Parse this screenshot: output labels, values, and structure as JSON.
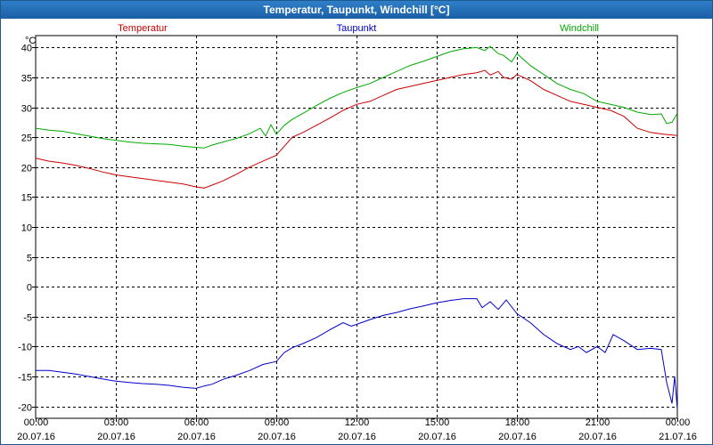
{
  "window": {
    "title": "Temperatur, Taupunkt, Windchill [°C]"
  },
  "chart_data": {
    "type": "line",
    "title": "Temperatur, Taupunkt, Windchill [°C]",
    "ylabel": "°C",
    "ylim": [
      -22,
      42
    ],
    "yticks": [
      40,
      35,
      30,
      25,
      20,
      15,
      10,
      5,
      0,
      -5,
      -10,
      -15,
      -20
    ],
    "xlim": [
      0,
      24
    ],
    "xticks": [
      {
        "x": 0,
        "time": "00:00",
        "date": "20.07.16"
      },
      {
        "x": 3,
        "time": "03:00",
        "date": "20.07.16"
      },
      {
        "x": 6,
        "time": "06:00",
        "date": "20.07.16"
      },
      {
        "x": 9,
        "time": "09:00",
        "date": "20.07.16"
      },
      {
        "x": 12,
        "time": "12:00",
        "date": "20.07.16"
      },
      {
        "x": 15,
        "time": "15:00",
        "date": "20.07.16"
      },
      {
        "x": 18,
        "time": "18:00",
        "date": "20.07.16"
      },
      {
        "x": 21,
        "time": "21:00",
        "date": "20.07.16"
      },
      {
        "x": 24,
        "time": "00:00",
        "date": "21.07.16"
      }
    ],
    "grid": true,
    "series": [
      {
        "name": "Temperatur",
        "color": "#cc0000",
        "points": [
          [
            0,
            21.5
          ],
          [
            0.5,
            21
          ],
          [
            1,
            20.7
          ],
          [
            1.5,
            20.3
          ],
          [
            2,
            19.8
          ],
          [
            2.5,
            19.2
          ],
          [
            3,
            18.7
          ],
          [
            3.5,
            18.4
          ],
          [
            4,
            18.1
          ],
          [
            4.5,
            17.8
          ],
          [
            5,
            17.5
          ],
          [
            5.5,
            17.2
          ],
          [
            6,
            16.7
          ],
          [
            6.3,
            16.5
          ],
          [
            6.6,
            17
          ],
          [
            7,
            17.7
          ],
          [
            7.5,
            18.8
          ],
          [
            8,
            20
          ],
          [
            8.5,
            21
          ],
          [
            9,
            22
          ],
          [
            9.3,
            23.5
          ],
          [
            9.6,
            25
          ],
          [
            10,
            25.8
          ],
          [
            10.5,
            27
          ],
          [
            11,
            28.2
          ],
          [
            11.5,
            29.5
          ],
          [
            12,
            30.5
          ],
          [
            12.5,
            31
          ],
          [
            13,
            32
          ],
          [
            13.5,
            33
          ],
          [
            14,
            33.5
          ],
          [
            14.5,
            34
          ],
          [
            15,
            34.5
          ],
          [
            15.5,
            35
          ],
          [
            16,
            35.5
          ],
          [
            16.5,
            35.8
          ],
          [
            16.8,
            36.2
          ],
          [
            17,
            35.4
          ],
          [
            17.3,
            36
          ],
          [
            17.5,
            35
          ],
          [
            17.8,
            34.7
          ],
          [
            18,
            35.5
          ],
          [
            18.5,
            34.5
          ],
          [
            19,
            33
          ],
          [
            19.5,
            32
          ],
          [
            20,
            31
          ],
          [
            20.5,
            30.5
          ],
          [
            21,
            30
          ],
          [
            21.5,
            29.5
          ],
          [
            22,
            28.5
          ],
          [
            22.5,
            26.5
          ],
          [
            23,
            25.8
          ],
          [
            23.5,
            25.5
          ],
          [
            24,
            25.3
          ]
        ]
      },
      {
        "name": "Taupunkt",
        "color": "#0000cc",
        "points": [
          [
            0,
            -14
          ],
          [
            0.5,
            -14
          ],
          [
            1,
            -14.3
          ],
          [
            1.5,
            -14.6
          ],
          [
            2,
            -15
          ],
          [
            2.5,
            -15.4
          ],
          [
            3,
            -15.8
          ],
          [
            3.5,
            -16
          ],
          [
            4,
            -16.2
          ],
          [
            4.5,
            -16.3
          ],
          [
            5,
            -16.5
          ],
          [
            5.5,
            -16.8
          ],
          [
            6,
            -17
          ],
          [
            6.3,
            -16.6
          ],
          [
            6.6,
            -16.3
          ],
          [
            7,
            -15.5
          ],
          [
            7.5,
            -14.8
          ],
          [
            8,
            -14
          ],
          [
            8.5,
            -13
          ],
          [
            9,
            -12.5
          ],
          [
            9.3,
            -11
          ],
          [
            9.6,
            -10.2
          ],
          [
            10,
            -9.5
          ],
          [
            10.5,
            -8.5
          ],
          [
            11,
            -7.2
          ],
          [
            11.5,
            -6
          ],
          [
            11.8,
            -6.6
          ],
          [
            12,
            -6.3
          ],
          [
            12.5,
            -5.5
          ],
          [
            13,
            -4.8
          ],
          [
            13.5,
            -4.3
          ],
          [
            14,
            -3.7
          ],
          [
            14.5,
            -3.2
          ],
          [
            15,
            -2.7
          ],
          [
            15.5,
            -2.3
          ],
          [
            16,
            -2
          ],
          [
            16.5,
            -2
          ],
          [
            16.7,
            -3.5
          ],
          [
            17,
            -2.5
          ],
          [
            17.3,
            -3.8
          ],
          [
            17.6,
            -2.2
          ],
          [
            18,
            -4.5
          ],
          [
            18.5,
            -6
          ],
          [
            19,
            -8
          ],
          [
            19.5,
            -9.5
          ],
          [
            20,
            -10.5
          ],
          [
            20.3,
            -10
          ],
          [
            20.6,
            -11
          ],
          [
            21,
            -10
          ],
          [
            21.3,
            -11
          ],
          [
            21.6,
            -8
          ],
          [
            22,
            -9
          ],
          [
            22.5,
            -10.5
          ],
          [
            23,
            -10.3
          ],
          [
            23.4,
            -10.5
          ],
          [
            23.6,
            -16
          ],
          [
            23.8,
            -19.5
          ],
          [
            23.9,
            -15
          ],
          [
            24,
            -20.5
          ]
        ]
      },
      {
        "name": "Windchill",
        "color": "#00aa00",
        "points": [
          [
            0,
            26.5
          ],
          [
            0.5,
            26.2
          ],
          [
            1,
            26
          ],
          [
            1.5,
            25.6
          ],
          [
            2,
            25.2
          ],
          [
            2.5,
            24.8
          ],
          [
            3,
            24.5
          ],
          [
            3.5,
            24.2
          ],
          [
            4,
            24
          ],
          [
            4.5,
            23.9
          ],
          [
            5,
            23.8
          ],
          [
            5.5,
            23.5
          ],
          [
            6,
            23.3
          ],
          [
            6.3,
            23.2
          ],
          [
            6.6,
            23.7
          ],
          [
            7,
            24.2
          ],
          [
            7.5,
            24.8
          ],
          [
            8,
            25.6
          ],
          [
            8.4,
            26.5
          ],
          [
            8.6,
            25.2
          ],
          [
            8.8,
            27.1
          ],
          [
            9,
            25.5
          ],
          [
            9.3,
            27
          ],
          [
            9.6,
            28
          ],
          [
            10,
            29
          ],
          [
            10.5,
            30.3
          ],
          [
            11,
            31.5
          ],
          [
            11.5,
            32.5
          ],
          [
            12,
            33.3
          ],
          [
            12.5,
            34
          ],
          [
            13,
            35
          ],
          [
            13.5,
            36
          ],
          [
            14,
            37
          ],
          [
            14.5,
            37.7
          ],
          [
            15,
            38.5
          ],
          [
            15.5,
            39.3
          ],
          [
            16,
            39.8
          ],
          [
            16.5,
            40
          ],
          [
            16.8,
            39.5
          ],
          [
            17,
            40.2
          ],
          [
            17.3,
            39
          ],
          [
            17.5,
            38.7
          ],
          [
            17.8,
            37.6
          ],
          [
            18,
            39
          ],
          [
            18.5,
            37
          ],
          [
            19,
            35.5
          ],
          [
            19.5,
            34
          ],
          [
            20,
            33
          ],
          [
            20.5,
            32.3
          ],
          [
            21,
            31
          ],
          [
            21.5,
            30.5
          ],
          [
            22,
            30
          ],
          [
            22.5,
            29.2
          ],
          [
            23,
            28.8
          ],
          [
            23.4,
            28.9
          ],
          [
            23.6,
            27.3
          ],
          [
            23.8,
            27.5
          ],
          [
            24,
            29
          ]
        ]
      }
    ]
  }
}
